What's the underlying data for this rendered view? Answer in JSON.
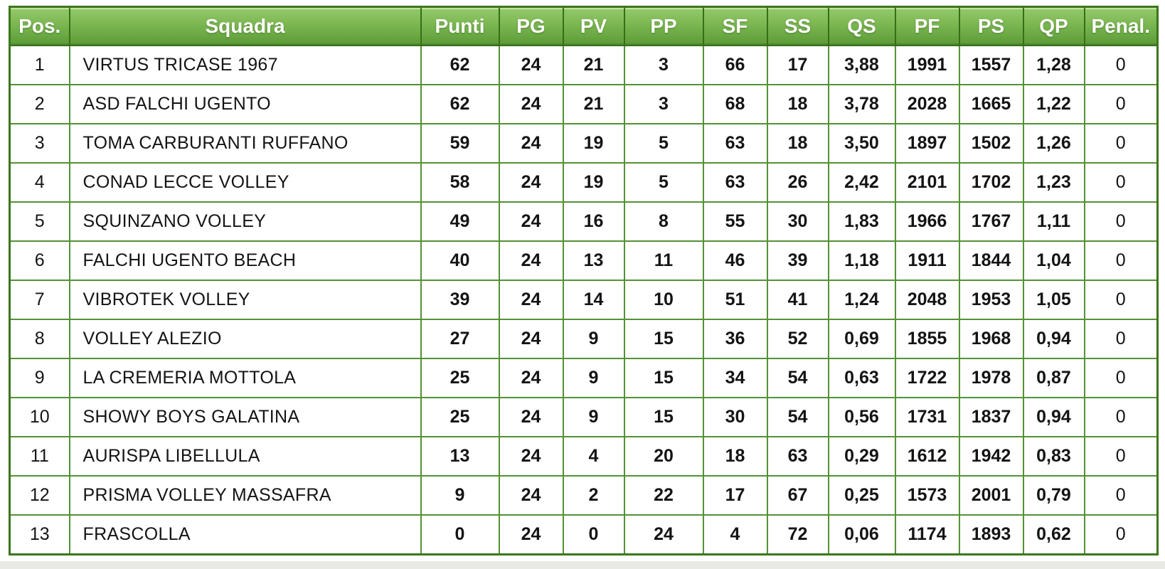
{
  "table": {
    "columns": [
      {
        "key": "pos",
        "label": "Pos."
      },
      {
        "key": "team",
        "label": "Squadra"
      },
      {
        "key": "punti",
        "label": "Punti"
      },
      {
        "key": "pg",
        "label": "PG"
      },
      {
        "key": "pv",
        "label": "PV"
      },
      {
        "key": "pp",
        "label": "PP"
      },
      {
        "key": "sf",
        "label": "SF"
      },
      {
        "key": "ss",
        "label": "SS"
      },
      {
        "key": "qs",
        "label": "QS"
      },
      {
        "key": "pf",
        "label": "PF"
      },
      {
        "key": "ps",
        "label": "PS"
      },
      {
        "key": "qp",
        "label": "QP"
      },
      {
        "key": "penal",
        "label": "Penal."
      }
    ],
    "rows": [
      {
        "pos": "1",
        "team": "VIRTUS TRICASE 1967",
        "punti": "62",
        "pg": "24",
        "pv": "21",
        "pp": "3",
        "sf": "66",
        "ss": "17",
        "qs": "3,88",
        "pf": "1991",
        "ps": "1557",
        "qp": "1,28",
        "penal": "0"
      },
      {
        "pos": "2",
        "team": "ASD FALCHI UGENTO",
        "punti": "62",
        "pg": "24",
        "pv": "21",
        "pp": "3",
        "sf": "68",
        "ss": "18",
        "qs": "3,78",
        "pf": "2028",
        "ps": "1665",
        "qp": "1,22",
        "penal": "0"
      },
      {
        "pos": "3",
        "team": "TOMA CARBURANTI RUFFANO",
        "punti": "59",
        "pg": "24",
        "pv": "19",
        "pp": "5",
        "sf": "63",
        "ss": "18",
        "qs": "3,50",
        "pf": "1897",
        "ps": "1502",
        "qp": "1,26",
        "penal": "0"
      },
      {
        "pos": "4",
        "team": "CONAD LECCE VOLLEY",
        "punti": "58",
        "pg": "24",
        "pv": "19",
        "pp": "5",
        "sf": "63",
        "ss": "26",
        "qs": "2,42",
        "pf": "2101",
        "ps": "1702",
        "qp": "1,23",
        "penal": "0"
      },
      {
        "pos": "5",
        "team": "SQUINZANO VOLLEY",
        "punti": "49",
        "pg": "24",
        "pv": "16",
        "pp": "8",
        "sf": "55",
        "ss": "30",
        "qs": "1,83",
        "pf": "1966",
        "ps": "1767",
        "qp": "1,11",
        "penal": "0"
      },
      {
        "pos": "6",
        "team": "FALCHI UGENTO BEACH",
        "punti": "40",
        "pg": "24",
        "pv": "13",
        "pp": "11",
        "sf": "46",
        "ss": "39",
        "qs": "1,18",
        "pf": "1911",
        "ps": "1844",
        "qp": "1,04",
        "penal": "0"
      },
      {
        "pos": "7",
        "team": "VIBROTEK VOLLEY",
        "punti": "39",
        "pg": "24",
        "pv": "14",
        "pp": "10",
        "sf": "51",
        "ss": "41",
        "qs": "1,24",
        "pf": "2048",
        "ps": "1953",
        "qp": "1,05",
        "penal": "0"
      },
      {
        "pos": "8",
        "team": "VOLLEY ALEZIO",
        "punti": "27",
        "pg": "24",
        "pv": "9",
        "pp": "15",
        "sf": "36",
        "ss": "52",
        "qs": "0,69",
        "pf": "1855",
        "ps": "1968",
        "qp": "0,94",
        "penal": "0"
      },
      {
        "pos": "9",
        "team": "LA CREMERIA MOTTOLA",
        "punti": "25",
        "pg": "24",
        "pv": "9",
        "pp": "15",
        "sf": "34",
        "ss": "54",
        "qs": "0,63",
        "pf": "1722",
        "ps": "1978",
        "qp": "0,87",
        "penal": "0"
      },
      {
        "pos": "10",
        "team": "SHOWY BOYS GALATINA",
        "punti": "25",
        "pg": "24",
        "pv": "9",
        "pp": "15",
        "sf": "30",
        "ss": "54",
        "qs": "0,56",
        "pf": "1731",
        "ps": "1837",
        "qp": "0,94",
        "penal": "0"
      },
      {
        "pos": "11",
        "team": "AURISPA LIBELLULA",
        "punti": "13",
        "pg": "24",
        "pv": "4",
        "pp": "20",
        "sf": "18",
        "ss": "63",
        "qs": "0,29",
        "pf": "1612",
        "ps": "1942",
        "qp": "0,83",
        "penal": "0"
      },
      {
        "pos": "12",
        "team": "PRISMA VOLLEY MASSAFRA",
        "punti": "9",
        "pg": "24",
        "pv": "2",
        "pp": "22",
        "sf": "17",
        "ss": "67",
        "qs": "0,25",
        "pf": "1573",
        "ps": "2001",
        "qp": "0,79",
        "penal": "0"
      },
      {
        "pos": "13",
        "team": "FRASCOLLA",
        "punti": "0",
        "pg": "24",
        "pv": "0",
        "pp": "24",
        "sf": "4",
        "ss": "72",
        "qs": "0,06",
        "pf": "1174",
        "ps": "1893",
        "qp": "0,62",
        "penal": "0"
      }
    ]
  },
  "colors": {
    "header_green_top": "#95c96c",
    "header_green_bottom": "#5c9a37",
    "header_border": "#356f17",
    "cell_border": "#549136",
    "outer_border": "#3c761c",
    "header_text": "#ffffff",
    "cell_text": "#141414",
    "page_background": "#ffffff",
    "bottom_strip": "#e9e9e6"
  }
}
